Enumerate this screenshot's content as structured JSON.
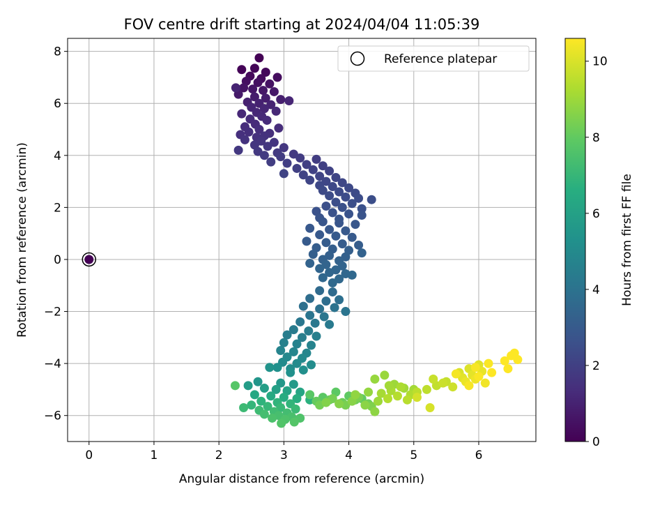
{
  "chart_data": {
    "type": "scatter",
    "title": "FOV centre drift starting at 2024/04/04 11:05:39",
    "xlabel": "Angular distance from reference (arcmin)",
    "ylabel": "Rotation from reference (arcmin)",
    "xlim": [
      -0.33,
      6.88
    ],
    "ylim": [
      -7.0,
      8.5
    ],
    "xticks": [
      0,
      1,
      2,
      3,
      4,
      5,
      6
    ],
    "xtick_labels": [
      "0",
      "1",
      "2",
      "3",
      "4",
      "5",
      "6"
    ],
    "yticks": [
      -6,
      -4,
      -2,
      0,
      2,
      4,
      6,
      8
    ],
    "ytick_labels": [
      "−6",
      "−4",
      "−2",
      "0",
      "2",
      "4",
      "6",
      "8"
    ],
    "grid": true,
    "legend": {
      "position": "top-right",
      "entries": [
        "Reference platepar"
      ]
    },
    "colorbar": {
      "label": "Hours from first FF file",
      "colormap": "viridis",
      "range": [
        0,
        10.6
      ],
      "ticks": [
        0,
        2,
        4,
        6,
        8,
        10
      ],
      "tick_labels": [
        "0",
        "2",
        "4",
        "6",
        "8",
        "10"
      ]
    },
    "reference_point": {
      "x": 0,
      "y": 0,
      "hours": 0
    },
    "series": [
      {
        "x": [
          2.62,
          2.35,
          2.55,
          2.72,
          2.48,
          2.65,
          2.9,
          2.42,
          2.6,
          2.78,
          2.38,
          2.52,
          2.68,
          2.85,
          2.3,
          2.55,
          2.72,
          2.95,
          2.44,
          2.62,
          2.8,
          2.26,
          2.5,
          2.7,
          3.08,
          2.58,
          2.35,
          2.88,
          2.66,
          2.48,
          2.74,
          2.56,
          2.4,
          2.92,
          2.62,
          2.46,
          2.78,
          2.33,
          2.58,
          2.7
        ],
        "y": [
          7.75,
          7.3,
          7.35,
          7.2,
          7.05,
          6.95,
          7.0,
          6.85,
          6.8,
          6.75,
          6.6,
          6.55,
          6.5,
          6.45,
          6.35,
          6.25,
          6.2,
          6.15,
          6.05,
          6.0,
          5.95,
          6.6,
          5.85,
          5.8,
          6.1,
          5.65,
          5.6,
          5.7,
          5.5,
          5.4,
          5.35,
          5.2,
          5.1,
          5.05,
          5.0,
          4.9,
          4.85,
          4.8,
          4.7,
          4.75
        ],
        "hours": [
          0.05,
          0.1,
          0.15,
          0.2,
          0.25,
          0.3,
          0.35,
          0.4,
          0.45,
          0.5,
          0.55,
          0.6,
          0.65,
          0.7,
          0.75,
          0.8,
          0.85,
          0.9,
          0.95,
          1.0,
          1.02,
          1.05,
          1.08,
          1.1,
          1.12,
          1.15,
          1.18,
          1.2,
          1.22,
          1.25,
          1.28,
          1.3,
          1.32,
          1.35,
          1.38,
          1.4,
          1.42,
          1.45,
          1.48,
          1.5
        ]
      },
      {
        "x": [
          2.4,
          2.65,
          2.85,
          2.55,
          2.75,
          3.0,
          2.3,
          2.6,
          2.9,
          3.15,
          2.7,
          2.95,
          3.25,
          3.5,
          2.8,
          3.05,
          3.35,
          3.6,
          3.2,
          3.45,
          3.7,
          3.0,
          3.3,
          3.55,
          3.8,
          3.4,
          3.65,
          3.9,
          3.55,
          3.75,
          4.0,
          3.6,
          3.85,
          4.1,
          3.7,
          3.95,
          4.15,
          4.35,
          3.8,
          4.05,
          3.65,
          3.9,
          4.2,
          3.5,
          3.75,
          4.0,
          4.2,
          3.55,
          3.85
        ],
        "y": [
          4.6,
          4.55,
          4.5,
          4.4,
          4.35,
          4.3,
          4.2,
          4.15,
          4.1,
          4.05,
          4.0,
          3.95,
          3.9,
          3.85,
          3.75,
          3.7,
          3.65,
          3.6,
          3.5,
          3.45,
          3.4,
          3.3,
          3.25,
          3.2,
          3.15,
          3.05,
          3.0,
          2.95,
          2.85,
          2.8,
          2.75,
          2.65,
          2.6,
          2.55,
          2.45,
          2.4,
          2.35,
          2.3,
          2.2,
          2.15,
          2.05,
          2.0,
          1.95,
          1.85,
          1.8,
          1.75,
          1.7,
          1.6,
          1.55
        ],
        "hours": [
          1.55,
          1.6,
          1.62,
          1.65,
          1.68,
          1.7,
          1.72,
          1.75,
          1.78,
          1.8,
          1.82,
          1.85,
          1.88,
          1.9,
          1.92,
          1.95,
          1.98,
          2.0,
          2.02,
          2.05,
          2.08,
          2.1,
          2.12,
          2.15,
          2.18,
          2.2,
          2.22,
          2.25,
          2.28,
          2.3,
          2.32,
          2.35,
          2.38,
          2.4,
          2.42,
          2.45,
          2.48,
          2.5,
          2.52,
          2.55,
          2.58,
          2.6,
          2.62,
          2.65,
          2.68,
          2.7,
          2.72,
          2.75,
          2.78
        ]
      },
      {
        "x": [
          3.6,
          3.85,
          4.1,
          3.4,
          3.7,
          3.95,
          3.55,
          3.8,
          4.05,
          3.35,
          3.65,
          3.9,
          4.15,
          3.5,
          3.75,
          4.0,
          3.45,
          3.7,
          3.95,
          3.6,
          3.85,
          4.2,
          3.4,
          3.65,
          3.9,
          3.55,
          3.8,
          3.7,
          3.95,
          3.6,
          3.85,
          4.05,
          3.75
        ],
        "y": [
          1.45,
          1.4,
          1.35,
          1.2,
          1.15,
          1.1,
          0.95,
          0.9,
          0.85,
          0.7,
          0.65,
          0.6,
          0.55,
          0.45,
          0.4,
          0.35,
          0.2,
          0.15,
          0.1,
          0.0,
          -0.05,
          0.25,
          -0.15,
          -0.2,
          -0.25,
          -0.35,
          -0.4,
          -0.5,
          -0.55,
          -0.7,
          -0.75,
          -0.6,
          -0.9
        ],
        "hours": [
          2.8,
          2.82,
          2.85,
          2.88,
          2.9,
          2.92,
          2.95,
          2.98,
          3.0,
          3.02,
          3.05,
          3.08,
          3.1,
          3.12,
          3.15,
          3.18,
          3.2,
          3.22,
          3.25,
          3.28,
          3.3,
          3.32,
          3.35,
          3.38,
          3.4,
          3.42,
          3.45,
          3.48,
          3.5,
          3.52,
          3.55,
          3.58,
          3.6
        ]
      },
      {
        "x": [
          3.55,
          3.75,
          3.4,
          3.65,
          3.85,
          3.3,
          3.55,
          3.78,
          3.95,
          3.4,
          3.62,
          3.25,
          3.48,
          3.7,
          3.15,
          3.38,
          3.05,
          3.28,
          3.5,
          3.0,
          3.2,
          3.42,
          2.95,
          3.15,
          3.35,
          3.05,
          3.28,
          2.98,
          3.2,
          3.42,
          3.1,
          3.3,
          2.9,
          3.1
        ],
        "y": [
          -1.2,
          -1.25,
          -1.5,
          -1.6,
          -1.55,
          -1.8,
          -1.9,
          -1.85,
          -2.0,
          -2.15,
          -2.2,
          -2.4,
          -2.45,
          -2.5,
          -2.7,
          -2.75,
          -2.9,
          -3.0,
          -2.95,
          -3.2,
          -3.25,
          -3.3,
          -3.5,
          -3.55,
          -3.6,
          -3.75,
          -3.8,
          -3.95,
          -4.0,
          -4.05,
          -4.2,
          -4.25,
          -4.15,
          -4.35
        ],
        "hours": [
          3.65,
          3.7,
          3.75,
          3.8,
          3.85,
          3.9,
          3.95,
          4.0,
          4.05,
          4.1,
          4.15,
          4.2,
          4.25,
          4.3,
          4.35,
          4.4,
          4.45,
          4.5,
          4.55,
          4.6,
          4.65,
          4.7,
          4.75,
          4.8,
          4.85,
          4.9,
          4.95,
          5.0,
          5.05,
          5.1,
          5.15,
          5.2,
          5.25,
          5.3
        ]
      },
      {
        "x": [
          2.78,
          2.6,
          2.95,
          3.15,
          2.45,
          2.7,
          2.88,
          3.05,
          3.25,
          2.55,
          2.8,
          3.0,
          3.2,
          3.4,
          2.65,
          2.9,
          3.1,
          2.5,
          2.75,
          2.95,
          3.18,
          2.38,
          2.62,
          2.85,
          3.05,
          2.7,
          2.92,
          3.12,
          2.82,
          3.02,
          3.25,
          2.96,
          3.16,
          2.25
        ],
        "y": [
          -4.15,
          -4.7,
          -4.75,
          -4.8,
          -4.85,
          -4.95,
          -5.0,
          -5.05,
          -5.1,
          -5.2,
          -5.25,
          -5.3,
          -5.35,
          -5.4,
          -5.45,
          -5.5,
          -5.55,
          -5.6,
          -5.65,
          -5.7,
          -5.75,
          -5.7,
          -5.8,
          -5.85,
          -5.9,
          -5.95,
          -6.0,
          -6.05,
          -6.1,
          -6.15,
          -6.1,
          -6.3,
          -6.25,
          -4.85
        ],
        "hours": [
          5.4,
          5.5,
          5.6,
          5.7,
          5.8,
          5.9,
          6.0,
          6.1,
          6.2,
          6.3,
          6.4,
          6.5,
          6.6,
          6.7,
          6.8,
          6.85,
          6.9,
          6.95,
          7.0,
          7.05,
          7.1,
          7.15,
          7.2,
          7.25,
          7.3,
          7.35,
          7.4,
          7.45,
          7.5,
          7.55,
          7.6,
          7.65,
          7.7,
          7.75
        ]
      },
      {
        "x": [
          3.4,
          3.6,
          3.8,
          4.0,
          4.2,
          3.5,
          3.7,
          3.9,
          4.1,
          4.3,
          3.55,
          3.75,
          3.95,
          4.15,
          4.35,
          3.65,
          3.85,
          4.05,
          4.25,
          4.4,
          4.1,
          4.3
        ],
        "y": [
          -5.2,
          -5.3,
          -5.1,
          -5.25,
          -5.35,
          -5.45,
          -5.4,
          -5.5,
          -5.4,
          -5.55,
          -5.6,
          -5.35,
          -5.6,
          -5.3,
          -5.65,
          -5.5,
          -5.55,
          -5.45,
          -5.6,
          -5.85,
          -5.2,
          -5.1
        ],
        "hours": [
          7.8,
          7.85,
          7.9,
          7.95,
          8.0,
          8.05,
          8.1,
          8.15,
          8.2,
          8.25,
          8.3,
          8.35,
          8.4,
          8.45,
          8.5,
          8.55,
          8.6,
          8.65,
          8.7,
          8.75,
          8.8,
          8.85
        ]
      },
      {
        "x": [
          4.4,
          4.55,
          4.7,
          4.85,
          5.0,
          4.5,
          4.65,
          4.8,
          4.95,
          4.6,
          4.75,
          4.9,
          5.05,
          5.2,
          5.35,
          5.5,
          5.3,
          5.45,
          5.6,
          5.75,
          5.05,
          5.25,
          4.45,
          4.62
        ],
        "y": [
          -4.6,
          -4.45,
          -4.8,
          -4.95,
          -5.0,
          -5.15,
          -5.05,
          -4.9,
          -5.2,
          -5.35,
          -5.25,
          -5.4,
          -5.1,
          -5.0,
          -4.85,
          -4.7,
          -4.6,
          -4.75,
          -4.9,
          -4.55,
          -5.3,
          -5.7,
          -5.45,
          -4.85
        ],
        "hours": [
          8.9,
          8.95,
          9.0,
          9.05,
          9.1,
          9.15,
          9.2,
          9.25,
          9.3,
          9.35,
          9.4,
          9.45,
          9.5,
          9.55,
          9.6,
          9.65,
          9.7,
          9.75,
          9.8,
          9.85,
          9.9,
          9.95,
          9.0,
          9.1
        ]
      },
      {
        "x": [
          5.7,
          5.85,
          6.0,
          5.75,
          5.9,
          6.05,
          5.8,
          5.95,
          6.1,
          5.65,
          5.85,
          6.0,
          6.2,
          6.4,
          6.5,
          6.55,
          6.45,
          6.6,
          5.95,
          6.15
        ],
        "y": [
          -4.35,
          -4.2,
          -4.05,
          -4.55,
          -4.45,
          -4.3,
          -4.7,
          -4.6,
          -4.75,
          -4.4,
          -4.85,
          -4.5,
          -4.35,
          -3.9,
          -3.7,
          -3.6,
          -4.2,
          -3.85,
          -4.15,
          -4.0
        ],
        "hours": [
          10.0,
          10.05,
          10.1,
          10.15,
          10.2,
          10.25,
          10.3,
          10.35,
          10.4,
          10.45,
          10.5,
          10.55,
          10.6,
          10.6,
          10.6,
          10.6,
          10.6,
          10.6,
          10.5,
          10.55
        ]
      }
    ]
  }
}
